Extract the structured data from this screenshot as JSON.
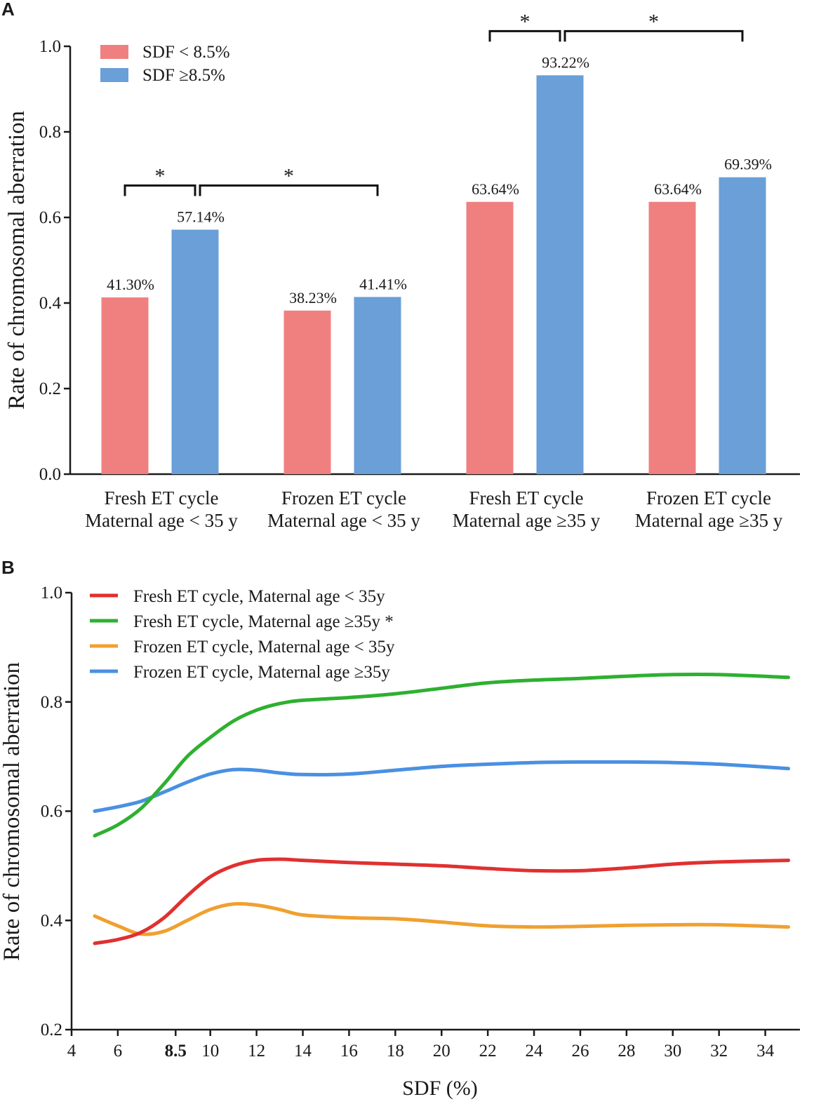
{
  "chart_data": [
    {
      "panel": "A",
      "type": "bar",
      "ylabel": "Rate of chromosomal aberration",
      "xlabel": "",
      "ylim": [
        0,
        1.0
      ],
      "yticks": [
        "0.0",
        "0.2",
        "0.4",
        "0.6",
        "0.8",
        "1.0"
      ],
      "categories": [
        [
          "Fresh ET cycle",
          "Maternal age < 35 y"
        ],
        [
          "Frozen ET cycle",
          "Maternal age < 35 y"
        ],
        [
          "Fresh ET cycle",
          "Maternal age ≥35 y"
        ],
        [
          "Frozen ET cycle",
          "Maternal age ≥35 y"
        ]
      ],
      "series": [
        {
          "name": "SDF < 8.5%",
          "color": "#f08080",
          "values": [
            0.413,
            0.3823,
            0.6364,
            0.6364
          ],
          "labels": [
            "41.30%",
            "38.23%",
            "63.64%",
            "63.64%"
          ]
        },
        {
          "name": "SDF ≥8.5%",
          "color": "#6a9fd8",
          "values": [
            0.5714,
            0.4141,
            0.9322,
            0.6939
          ],
          "labels": [
            "57.14%",
            "41.41%",
            "93.22%",
            "69.39%"
          ]
        }
      ],
      "significance": [
        {
          "from": [
            0,
            0
          ],
          "to": [
            0,
            1
          ],
          "label": "*"
        },
        {
          "from": [
            0,
            1
          ],
          "to": [
            1,
            1
          ],
          "label": "*"
        },
        {
          "from": [
            2,
            0
          ],
          "to": [
            2,
            1
          ],
          "label": "*"
        },
        {
          "from": [
            2,
            1
          ],
          "to": [
            3,
            1
          ],
          "label": "*"
        }
      ],
      "legend": "top-left"
    },
    {
      "panel": "B",
      "type": "line",
      "ylabel": "Rate of chromosomal aberration",
      "xlabel": "SDF (%)",
      "xlim": [
        4,
        35.5
      ],
      "ylim": [
        0.2,
        1.0
      ],
      "xticks": [
        4,
        6,
        8.5,
        10,
        12,
        14,
        16,
        18,
        20,
        22,
        24,
        26,
        28,
        30,
        32,
        34
      ],
      "xtick_labels": [
        "4",
        "6",
        "8.5",
        "10",
        "12",
        "14",
        "16",
        "18",
        "20",
        "22",
        "24",
        "26",
        "28",
        "30",
        "32",
        "34"
      ],
      "yticks": [
        "0.2",
        "0.4",
        "0.6",
        "0.8",
        "1.0"
      ],
      "series": [
        {
          "name": "Fresh ET cycle, Maternal age < 35y",
          "color": "#e03030",
          "x": [
            5,
            6,
            7,
            8,
            9,
            10,
            11,
            12,
            13,
            14,
            16,
            18,
            20,
            22,
            24,
            26,
            28,
            30,
            32,
            35
          ],
          "y": [
            0.358,
            0.365,
            0.378,
            0.405,
            0.445,
            0.48,
            0.5,
            0.51,
            0.512,
            0.51,
            0.506,
            0.503,
            0.5,
            0.495,
            0.491,
            0.491,
            0.496,
            0.503,
            0.507,
            0.51
          ]
        },
        {
          "name": "Fresh ET cycle, Maternal age ≥35y *",
          "color": "#2eb030",
          "x": [
            5,
            6,
            7,
            8,
            9,
            10,
            11,
            12,
            13,
            14,
            16,
            18,
            20,
            22,
            24,
            26,
            28,
            30,
            32,
            35
          ],
          "y": [
            0.555,
            0.575,
            0.605,
            0.65,
            0.7,
            0.735,
            0.765,
            0.785,
            0.797,
            0.803,
            0.808,
            0.815,
            0.825,
            0.835,
            0.84,
            0.843,
            0.847,
            0.85,
            0.85,
            0.845
          ]
        },
        {
          "name": "Frozen ET cycle, Maternal age < 35y",
          "color": "#f0a030",
          "x": [
            5,
            6,
            7,
            8,
            9,
            10,
            11,
            12,
            13,
            14,
            16,
            18,
            20,
            22,
            24,
            26,
            28,
            30,
            32,
            35
          ],
          "y": [
            0.408,
            0.39,
            0.375,
            0.38,
            0.4,
            0.42,
            0.43,
            0.428,
            0.42,
            0.41,
            0.405,
            0.403,
            0.397,
            0.39,
            0.388,
            0.389,
            0.391,
            0.392,
            0.392,
            0.388
          ]
        },
        {
          "name": "Frozen ET cycle, Maternal age ≥35y",
          "color": "#4a90e2",
          "x": [
            5,
            6,
            7,
            8,
            9,
            10,
            11,
            12,
            13,
            14,
            16,
            18,
            20,
            22,
            24,
            26,
            28,
            30,
            32,
            35
          ],
          "y": [
            0.6,
            0.608,
            0.618,
            0.635,
            0.653,
            0.668,
            0.676,
            0.675,
            0.67,
            0.667,
            0.668,
            0.675,
            0.682,
            0.686,
            0.689,
            0.69,
            0.69,
            0.689,
            0.686,
            0.678
          ]
        }
      ],
      "legend": "top-left"
    }
  ]
}
